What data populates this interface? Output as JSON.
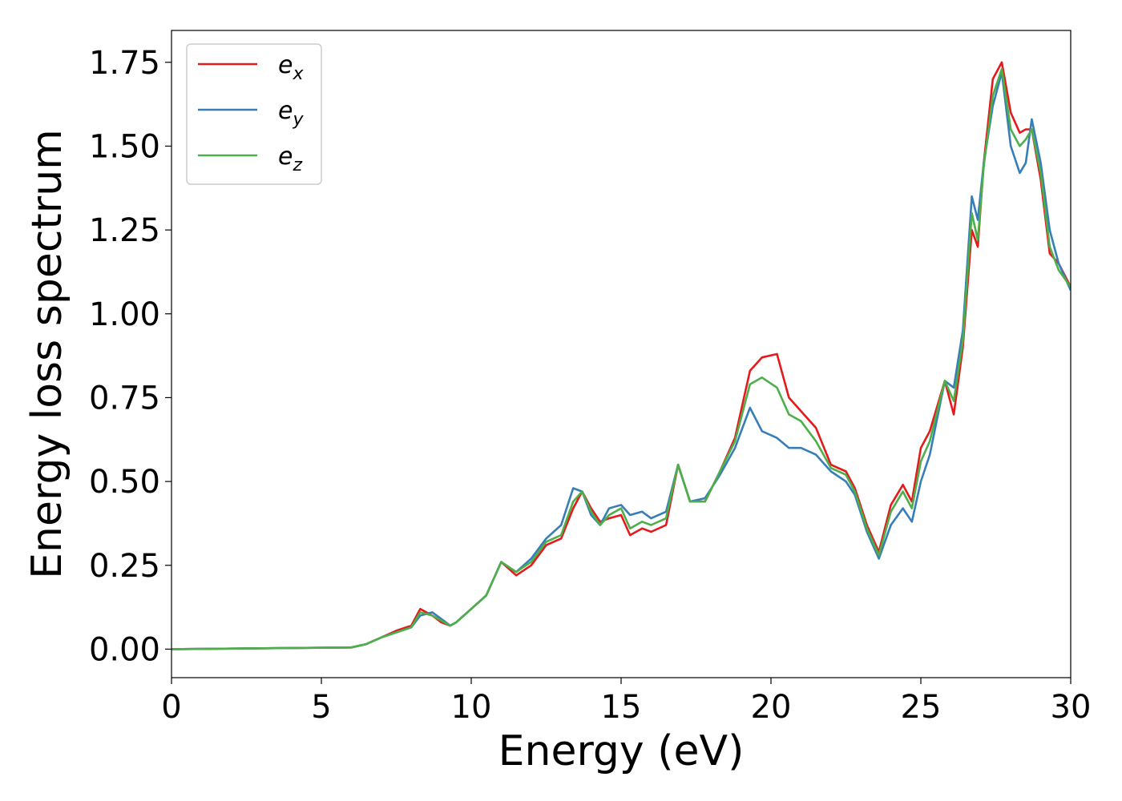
{
  "chart_data": {
    "type": "line",
    "xlabel": "Energy (eV)",
    "ylabel": "Energy loss spectrum",
    "xlim": [
      0,
      30
    ],
    "ylim": [
      -0.085,
      1.845
    ],
    "xticks": [
      0,
      5,
      10,
      15,
      20,
      25,
      30
    ],
    "xtick_labels": [
      "0",
      "5",
      "10",
      "15",
      "20",
      "25",
      "30"
    ],
    "yticks": [
      0,
      0.25,
      0.5,
      0.75,
      1.0,
      1.25,
      1.5,
      1.75
    ],
    "ytick_labels": [
      "0.00",
      "0.25",
      "0.50",
      "0.75",
      "1.00",
      "1.25",
      "1.50",
      "1.75"
    ],
    "grid": false,
    "legend_position": "top-left",
    "x": [
      0,
      6.0,
      6.5,
      7.0,
      7.5,
      8.0,
      8.3,
      8.7,
      9.0,
      9.3,
      9.5,
      10.0,
      10.5,
      11.0,
      11.5,
      12.0,
      12.5,
      13.0,
      13.4,
      13.7,
      14.0,
      14.3,
      14.6,
      15.0,
      15.3,
      15.7,
      16.0,
      16.5,
      16.9,
      17.3,
      17.8,
      18.3,
      18.8,
      19.3,
      19.7,
      20.2,
      20.6,
      21.0,
      21.5,
      22.0,
      22.5,
      22.8,
      23.2,
      23.6,
      24.0,
      24.4,
      24.7,
      25.0,
      25.3,
      25.8,
      26.1,
      26.4,
      26.7,
      26.9,
      27.1,
      27.4,
      27.7,
      28.0,
      28.3,
      28.5,
      28.7,
      29.0,
      29.3,
      29.6,
      30.0
    ],
    "series": [
      {
        "name": "e",
        "sub": "x",
        "color": "#e41a1c",
        "values": [
          0.0,
          0.005,
          0.015,
          0.035,
          0.055,
          0.07,
          0.12,
          0.1,
          0.08,
          0.07,
          0.08,
          0.12,
          0.16,
          0.26,
          0.22,
          0.25,
          0.31,
          0.33,
          0.42,
          0.47,
          0.42,
          0.38,
          0.39,
          0.4,
          0.34,
          0.36,
          0.35,
          0.37,
          0.55,
          0.44,
          0.44,
          0.53,
          0.63,
          0.83,
          0.87,
          0.88,
          0.75,
          0.71,
          0.66,
          0.55,
          0.53,
          0.48,
          0.37,
          0.29,
          0.43,
          0.49,
          0.44,
          0.6,
          0.65,
          0.8,
          0.7,
          0.9,
          1.25,
          1.2,
          1.45,
          1.7,
          1.75,
          1.6,
          1.54,
          1.55,
          1.55,
          1.4,
          1.18,
          1.15,
          1.08
        ]
      },
      {
        "name": "e",
        "sub": "y",
        "color": "#377eb8",
        "values": [
          0.0,
          0.005,
          0.015,
          0.035,
          0.05,
          0.065,
          0.1,
          0.11,
          0.09,
          0.07,
          0.08,
          0.12,
          0.16,
          0.26,
          0.23,
          0.27,
          0.33,
          0.37,
          0.48,
          0.47,
          0.4,
          0.37,
          0.42,
          0.43,
          0.4,
          0.41,
          0.39,
          0.41,
          0.55,
          0.44,
          0.45,
          0.52,
          0.6,
          0.72,
          0.65,
          0.63,
          0.6,
          0.6,
          0.58,
          0.53,
          0.5,
          0.46,
          0.35,
          0.27,
          0.37,
          0.42,
          0.38,
          0.5,
          0.58,
          0.8,
          0.78,
          0.95,
          1.35,
          1.28,
          1.45,
          1.62,
          1.72,
          1.5,
          1.42,
          1.45,
          1.58,
          1.45,
          1.25,
          1.15,
          1.07
        ]
      },
      {
        "name": "e",
        "sub": "z",
        "color": "#4daf4a",
        "values": [
          0.0,
          0.005,
          0.015,
          0.035,
          0.05,
          0.065,
          0.11,
          0.1,
          0.085,
          0.07,
          0.08,
          0.12,
          0.16,
          0.26,
          0.23,
          0.26,
          0.32,
          0.34,
          0.44,
          0.47,
          0.41,
          0.37,
          0.4,
          0.42,
          0.36,
          0.38,
          0.37,
          0.39,
          0.55,
          0.44,
          0.44,
          0.53,
          0.62,
          0.79,
          0.81,
          0.78,
          0.7,
          0.68,
          0.62,
          0.54,
          0.52,
          0.47,
          0.36,
          0.28,
          0.41,
          0.47,
          0.42,
          0.56,
          0.62,
          0.8,
          0.74,
          0.92,
          1.3,
          1.22,
          1.44,
          1.65,
          1.73,
          1.55,
          1.5,
          1.52,
          1.55,
          1.42,
          1.2,
          1.13,
          1.08
        ]
      }
    ]
  }
}
